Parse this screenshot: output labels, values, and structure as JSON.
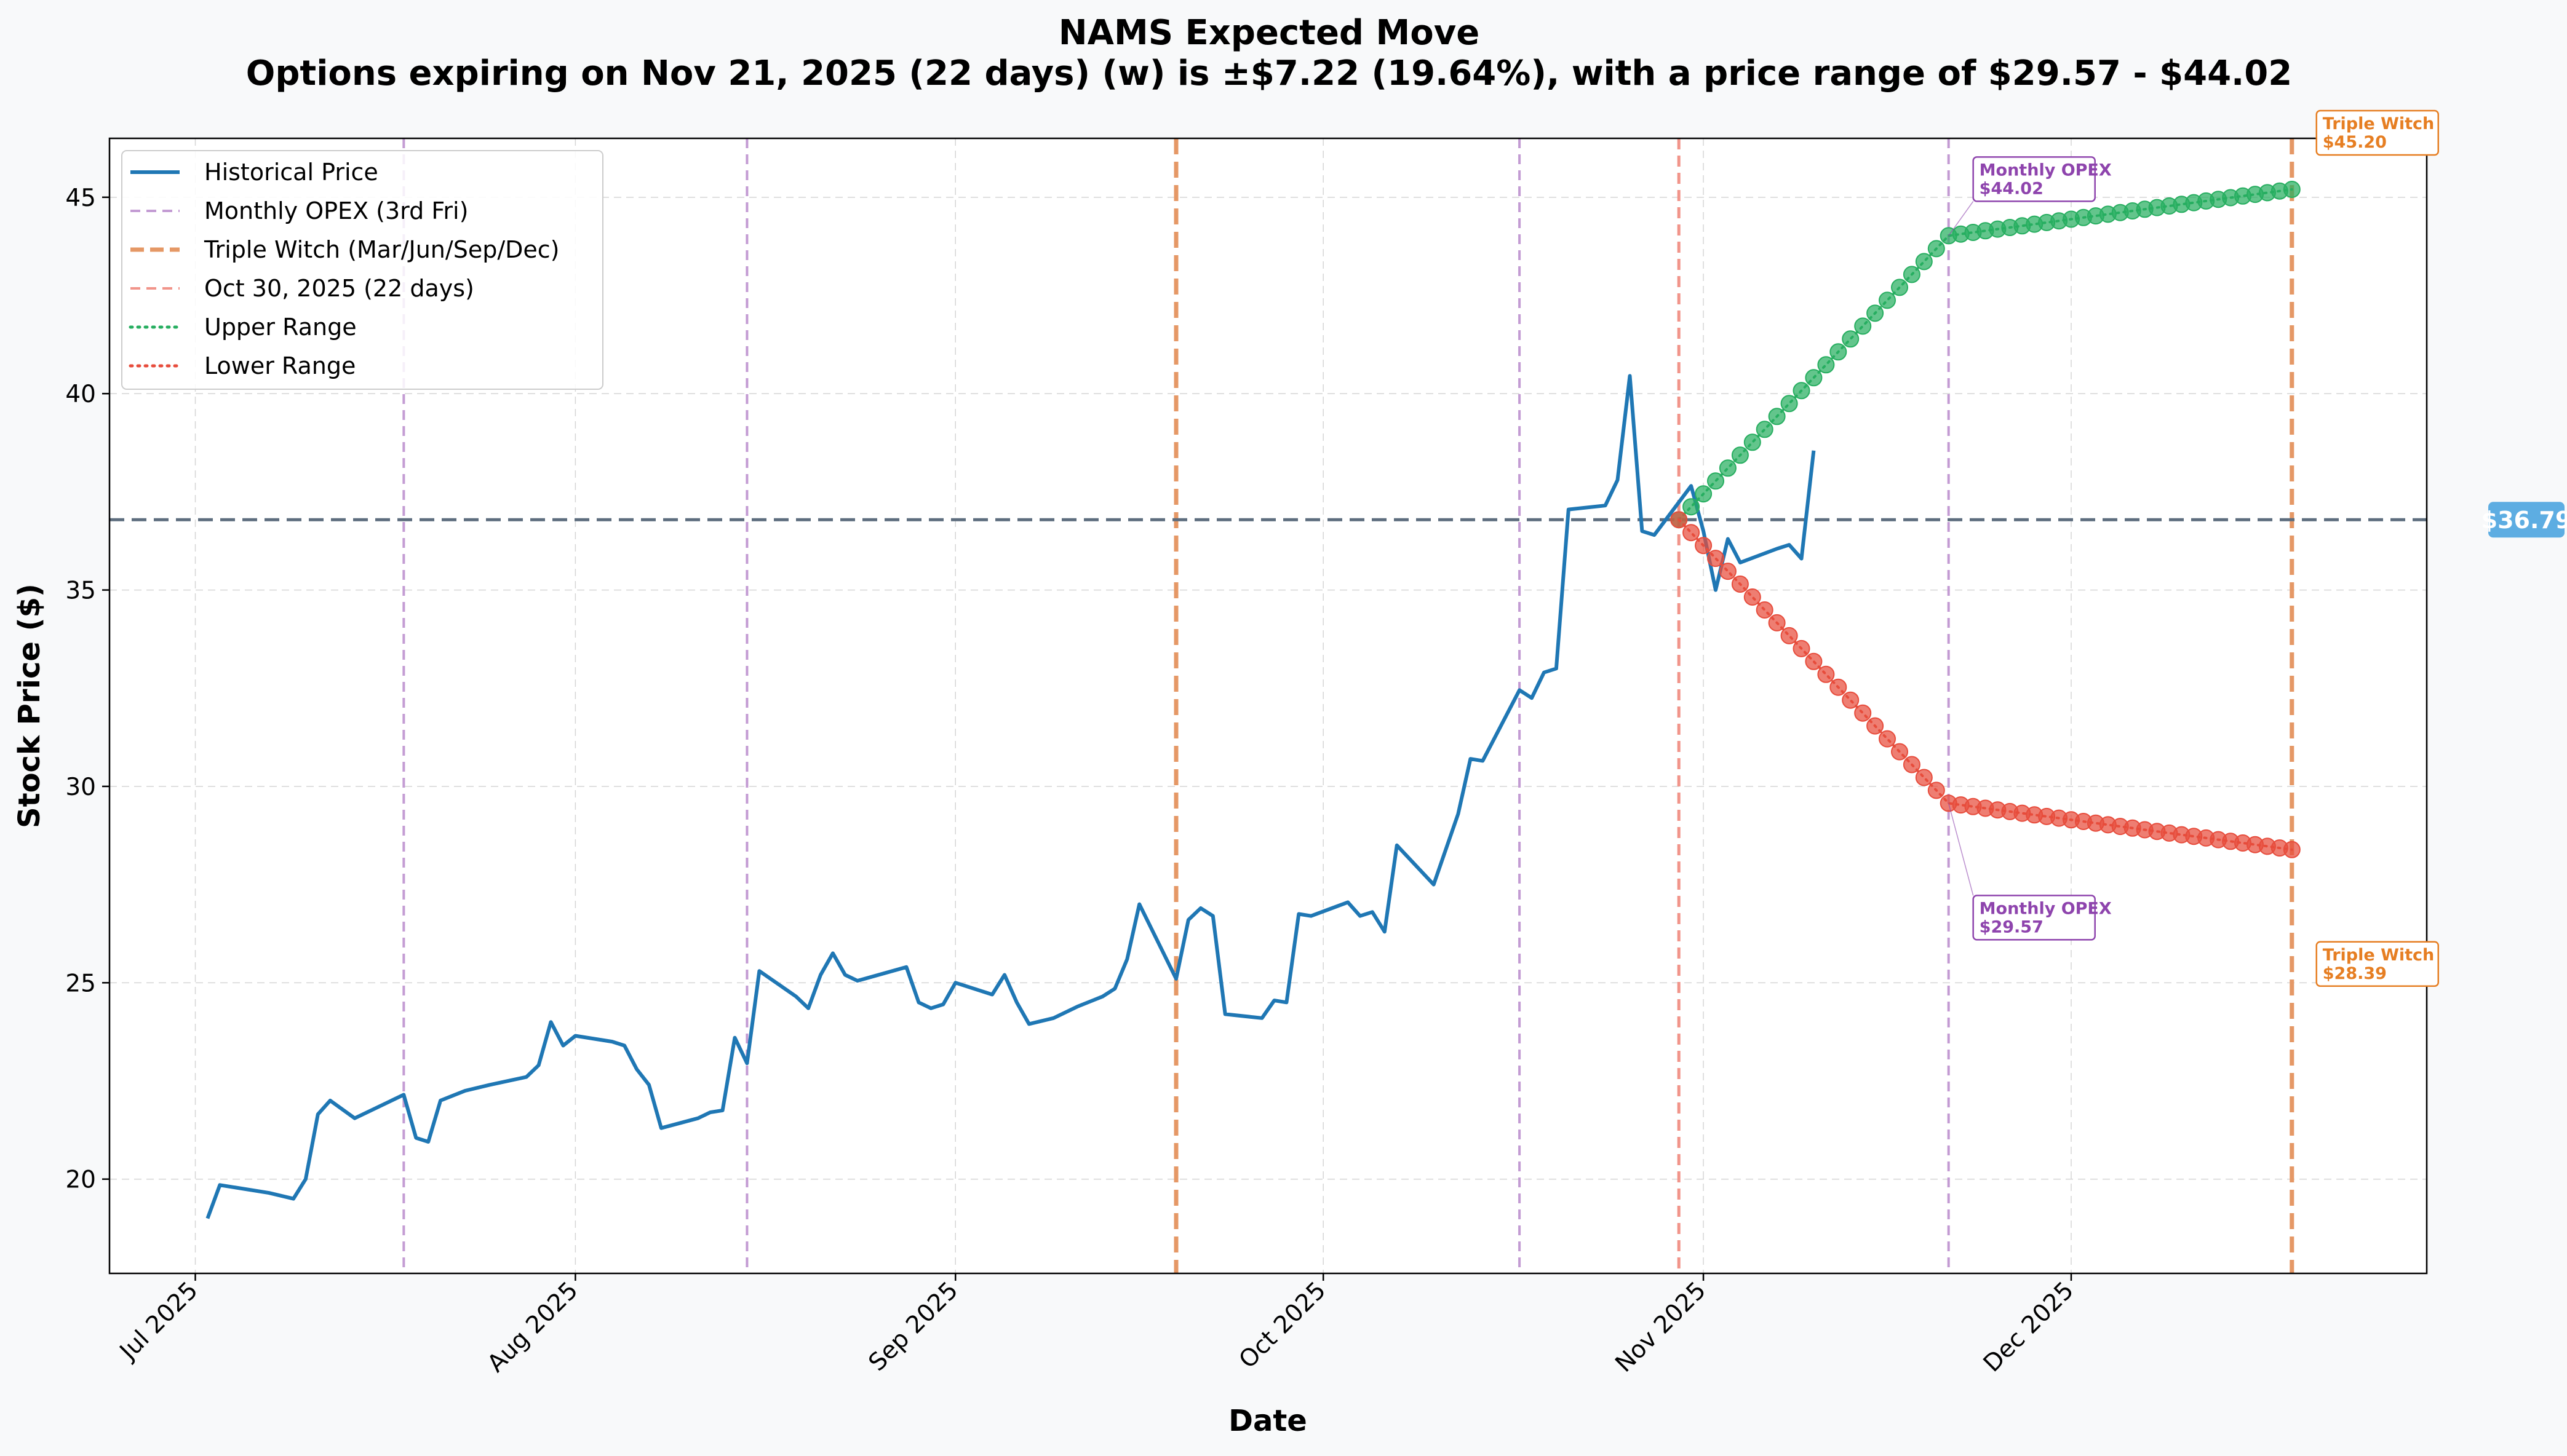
{
  "chart_data": {
    "type": "line",
    "title": "NAMS Expected Move",
    "subtitle": "Options expiring on Nov 21, 2025 (22 days) (w) is ±$7.22 (19.64%), with a price range of $29.57 - $44.02",
    "xlabel": "Date",
    "ylabel": "Stock Price ($)",
    "x_range": [
      "2025-06-24",
      "2025-12-30"
    ],
    "ylim": [
      17.6,
      46.5
    ],
    "x_ticks": [
      {
        "date": "2025-07-01",
        "label": "Jul 2025"
      },
      {
        "date": "2025-08-01",
        "label": "Aug 2025"
      },
      {
        "date": "2025-09-01",
        "label": "Sep 2025"
      },
      {
        "date": "2025-10-01",
        "label": "Oct 2025"
      },
      {
        "date": "2025-11-01",
        "label": "Nov 2025"
      },
      {
        "date": "2025-12-01",
        "label": "Dec 2025"
      }
    ],
    "y_ticks": [
      20,
      25,
      30,
      35,
      40,
      45
    ],
    "grid": true,
    "legend_position": "top-left",
    "legend": [
      {
        "label": "Historical Price",
        "color": "#1f77b4",
        "style": "solid"
      },
      {
        "label": "Monthly OPEX (3rd Fri)",
        "color": "#c39bd3",
        "style": "dashed"
      },
      {
        "label": "Triple Witch (Mar/Jun/Sep/Dec)",
        "color": "#e59866",
        "style": "dashed-thick"
      },
      {
        "label": "Oct 30, 2025 (22 days)",
        "color": "#f1948a",
        "style": "dashed"
      },
      {
        "label": "Upper Range",
        "color": "#27ae60",
        "style": "dotted"
      },
      {
        "label": "Lower Range",
        "color": "#e74c3c",
        "style": "dotted"
      }
    ],
    "historical": {
      "name": "Historical Price",
      "color": "#1f77b4",
      "points": [
        [
          "2025-07-02",
          19.0
        ],
        [
          "2025-07-03",
          19.85
        ],
        [
          "2025-07-07",
          19.65
        ],
        [
          "2025-07-09",
          19.5
        ],
        [
          "2025-07-10",
          20.0
        ],
        [
          "2025-07-11",
          21.65
        ],
        [
          "2025-07-12",
          22.0
        ],
        [
          "2025-07-14",
          21.55
        ],
        [
          "2025-07-18",
          22.15
        ],
        [
          "2025-07-19",
          21.05
        ],
        [
          "2025-07-20",
          20.95
        ],
        [
          "2025-07-21",
          22.0
        ],
        [
          "2025-07-23",
          22.25
        ],
        [
          "2025-07-25",
          22.4
        ],
        [
          "2025-07-28",
          22.6
        ],
        [
          "2025-07-29",
          22.9
        ],
        [
          "2025-07-30",
          24.0
        ],
        [
          "2025-07-31",
          23.4
        ],
        [
          "2025-08-01",
          23.65
        ],
        [
          "2025-08-04",
          23.5
        ],
        [
          "2025-08-05",
          23.4
        ],
        [
          "2025-08-06",
          22.8
        ],
        [
          "2025-08-07",
          22.4
        ],
        [
          "2025-08-08",
          21.3
        ],
        [
          "2025-08-11",
          21.55
        ],
        [
          "2025-08-12",
          21.7
        ],
        [
          "2025-08-13",
          21.75
        ],
        [
          "2025-08-14",
          23.6
        ],
        [
          "2025-08-15",
          22.95
        ],
        [
          "2025-08-16",
          25.3
        ],
        [
          "2025-08-19",
          24.65
        ],
        [
          "2025-08-20",
          24.35
        ],
        [
          "2025-08-21",
          25.2
        ],
        [
          "2025-08-22",
          25.75
        ],
        [
          "2025-08-23",
          25.2
        ],
        [
          "2025-08-24",
          25.05
        ],
        [
          "2025-08-28",
          25.4
        ],
        [
          "2025-08-29",
          24.5
        ],
        [
          "2025-08-30",
          24.35
        ],
        [
          "2025-08-31",
          24.45
        ],
        [
          "2025-09-01",
          25.0
        ],
        [
          "2025-09-04",
          24.7
        ],
        [
          "2025-09-05",
          25.2
        ],
        [
          "2025-09-06",
          24.5
        ],
        [
          "2025-09-07",
          23.95
        ],
        [
          "2025-09-09",
          24.1
        ],
        [
          "2025-09-11",
          24.4
        ],
        [
          "2025-09-13",
          24.65
        ],
        [
          "2025-09-14",
          24.85
        ],
        [
          "2025-09-15",
          25.6
        ],
        [
          "2025-09-16",
          27.0
        ],
        [
          "2025-09-19",
          25.1
        ],
        [
          "2025-09-20",
          26.6
        ],
        [
          "2025-09-21",
          26.9
        ],
        [
          "2025-09-22",
          26.7
        ],
        [
          "2025-09-23",
          24.2
        ],
        [
          "2025-09-26",
          24.1
        ],
        [
          "2025-09-27",
          24.55
        ],
        [
          "2025-09-28",
          24.5
        ],
        [
          "2025-09-29",
          26.75
        ],
        [
          "2025-09-30",
          26.7
        ],
        [
          "2025-10-03",
          27.05
        ],
        [
          "2025-10-04",
          26.7
        ],
        [
          "2025-10-05",
          26.8
        ],
        [
          "2025-10-06",
          26.3
        ],
        [
          "2025-10-07",
          28.5
        ],
        [
          "2025-10-10",
          27.5
        ],
        [
          "2025-10-12",
          29.3
        ],
        [
          "2025-10-13",
          30.7
        ],
        [
          "2025-10-14",
          30.65
        ],
        [
          "2025-10-17",
          32.45
        ],
        [
          "2025-10-18",
          32.25
        ],
        [
          "2025-10-19",
          32.9
        ],
        [
          "2025-10-20",
          33.0
        ],
        [
          "2025-10-21",
          37.05
        ],
        [
          "2025-10-24",
          37.15
        ],
        [
          "2025-10-25",
          37.8
        ],
        [
          "2025-10-26",
          40.45
        ],
        [
          "2025-10-27",
          36.5
        ],
        [
          "2025-10-28",
          36.4
        ],
        [
          "2025-10-31",
          37.65
        ],
        [
          "2025-11-01",
          36.5
        ],
        [
          "2025-11-02",
          35.0
        ],
        [
          "2025-11-03",
          36.3
        ],
        [
          "2025-11-04",
          35.7
        ],
        [
          "2025-11-07",
          36.05
        ],
        [
          "2025-11-08",
          36.15
        ],
        [
          "2025-11-09",
          35.8
        ],
        [
          "2025-11-10",
          38.55
        ]
      ]
    },
    "expected_move": {
      "start_date": "2025-10-30",
      "start_value": 36.79,
      "opex_date": "2025-11-21",
      "upper_at_opex": 44.02,
      "lower_at_opex": 29.57,
      "end_date": "2025-12-19",
      "upper_at_end": 45.2,
      "lower_at_end": 28.39,
      "upper_color": "#27ae60",
      "lower_color": "#e74c3c"
    },
    "vertical_lines": [
      {
        "date": "2025-07-18",
        "kind": "monthly_opex",
        "color": "#c39bd3"
      },
      {
        "date": "2025-08-15",
        "kind": "monthly_opex",
        "color": "#c39bd3"
      },
      {
        "date": "2025-09-19",
        "kind": "triple_witch",
        "color": "#e59866"
      },
      {
        "date": "2025-10-17",
        "kind": "monthly_opex",
        "color": "#c39bd3"
      },
      {
        "date": "2025-10-30",
        "kind": "current_date",
        "color": "#f1948a"
      },
      {
        "date": "2025-11-21",
        "kind": "monthly_opex",
        "color": "#c39bd3"
      },
      {
        "date": "2025-12-19",
        "kind": "triple_witch",
        "color": "#e59866"
      }
    ],
    "current_price": {
      "value": 36.79,
      "label": "$36.79",
      "line_color": "#5d6d7e",
      "badge_color": "#5dade2"
    },
    "annotations": [
      {
        "title": "Monthly OPEX",
        "value": "$44.02",
        "date": "2025-11-21",
        "y": 44.02,
        "color": "#8e44ad",
        "placement": "above-right"
      },
      {
        "title": "Monthly OPEX",
        "value": "$29.57",
        "date": "2025-11-21",
        "y": 29.57,
        "color": "#8e44ad",
        "placement": "below-right"
      },
      {
        "title": "Triple Witch",
        "value": "$45.20",
        "date": "2025-12-19",
        "y": 45.2,
        "color": "#e67e22",
        "placement": "above-right"
      },
      {
        "title": "Triple Witch",
        "value": "$28.39",
        "date": "2025-12-19",
        "y": 28.39,
        "color": "#e67e22",
        "placement": "below-right"
      }
    ]
  }
}
